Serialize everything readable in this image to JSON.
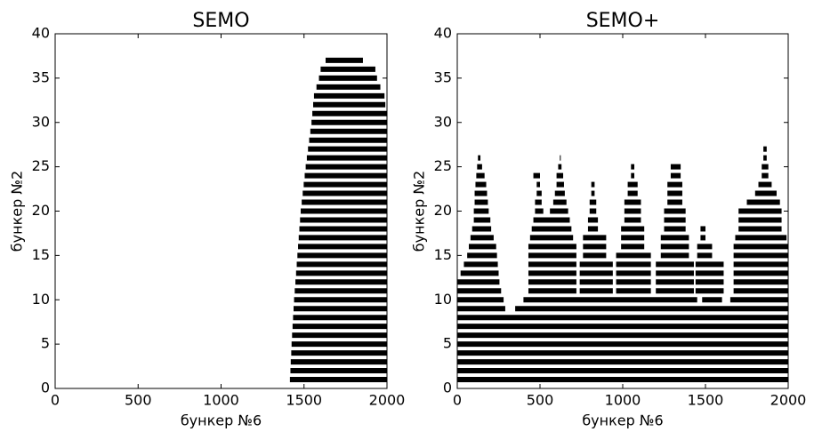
{
  "chart_data": [
    {
      "type": "range",
      "title": "SEMO",
      "xlabel": "бункер №6",
      "ylabel": "бункер №2",
      "color": "#000000",
      "xlim": [
        0,
        2000
      ],
      "ylim": [
        0,
        40
      ],
      "xticks": [
        0,
        500,
        1000,
        1500,
        2000
      ],
      "yticks": [
        0,
        5,
        10,
        15,
        20,
        25,
        30,
        35,
        40
      ],
      "segments": [
        [
          1,
          1415,
          2000
        ],
        [
          2,
          1418,
          2000
        ],
        [
          3,
          1420,
          2000
        ],
        [
          4,
          1423,
          2000
        ],
        [
          5,
          1425,
          2000
        ],
        [
          6,
          1428,
          2000
        ],
        [
          7,
          1431,
          2000
        ],
        [
          8,
          1434,
          2000
        ],
        [
          9,
          1437,
          2000
        ],
        [
          10,
          1440,
          2000
        ],
        [
          11,
          1444,
          2000
        ],
        [
          12,
          1448,
          2000
        ],
        [
          13,
          1452,
          2000
        ],
        [
          14,
          1456,
          2000
        ],
        [
          15,
          1460,
          2000
        ],
        [
          16,
          1464,
          2000
        ],
        [
          17,
          1468,
          2000
        ],
        [
          18,
          1472,
          2000
        ],
        [
          19,
          1476,
          2000
        ],
        [
          20,
          1480,
          2000
        ],
        [
          21,
          1486,
          2000
        ],
        [
          22,
          1492,
          2000
        ],
        [
          23,
          1498,
          2000
        ],
        [
          24,
          1504,
          2000
        ],
        [
          25,
          1510,
          2000
        ],
        [
          26,
          1517,
          2000
        ],
        [
          27,
          1524,
          2000
        ],
        [
          28,
          1531,
          2000
        ],
        [
          29,
          1538,
          2000
        ],
        [
          30,
          1545,
          2000
        ],
        [
          31,
          1550,
          2000
        ],
        [
          32,
          1555,
          1990
        ],
        [
          33,
          1560,
          1985
        ],
        [
          34,
          1575,
          1960
        ],
        [
          35,
          1590,
          1940
        ],
        [
          36,
          1600,
          1930
        ],
        [
          37,
          1630,
          1855
        ]
      ]
    },
    {
      "type": "range",
      "title": "SEMO+",
      "xlabel": "бункер №6",
      "ylabel": "бункер №2",
      "color": "#000000",
      "xlim": [
        0,
        2000
      ],
      "ylim": [
        0,
        40
      ],
      "xticks": [
        0,
        500,
        1000,
        1500,
        2000
      ],
      "yticks": [
        0,
        5,
        10,
        15,
        20,
        25,
        30,
        35,
        40
      ],
      "segments": [
        [
          1,
          0,
          2000
        ],
        [
          2,
          0,
          2000
        ],
        [
          3,
          0,
          2000
        ],
        [
          4,
          0,
          2000
        ],
        [
          5,
          0,
          2000
        ],
        [
          6,
          0,
          2000
        ],
        [
          7,
          0,
          2000
        ],
        [
          8,
          0,
          2000
        ],
        [
          9,
          0,
          290
        ],
        [
          9,
          350,
          2000
        ],
        [
          10,
          0,
          280
        ],
        [
          10,
          400,
          1450
        ],
        [
          10,
          1480,
          1600
        ],
        [
          10,
          1650,
          2000
        ],
        [
          11,
          0,
          265
        ],
        [
          12,
          0,
          255
        ],
        [
          13,
          20,
          250
        ],
        [
          14,
          40,
          245
        ],
        [
          15,
          60,
          240
        ],
        [
          16,
          70,
          235
        ],
        [
          17,
          80,
          220
        ],
        [
          18,
          90,
          205
        ],
        [
          19,
          100,
          200
        ],
        [
          20,
          100,
          190
        ],
        [
          21,
          105,
          185
        ],
        [
          22,
          105,
          180
        ],
        [
          23,
          110,
          175
        ],
        [
          24,
          115,
          165
        ],
        [
          25,
          120,
          150
        ],
        [
          26,
          125,
          140
        ],
        [
          11,
          430,
          720
        ],
        [
          12,
          430,
          720
        ],
        [
          13,
          430,
          720
        ],
        [
          14,
          430,
          720
        ],
        [
          15,
          430,
          720
        ],
        [
          16,
          430,
          720
        ],
        [
          17,
          440,
          700
        ],
        [
          18,
          450,
          690
        ],
        [
          19,
          460,
          680
        ],
        [
          20,
          470,
          520
        ],
        [
          20,
          560,
          670
        ],
        [
          21,
          470,
          510
        ],
        [
          21,
          580,
          660
        ],
        [
          22,
          480,
          510
        ],
        [
          22,
          590,
          650
        ],
        [
          23,
          480,
          500
        ],
        [
          23,
          600,
          645
        ],
        [
          24,
          460,
          500
        ],
        [
          24,
          600,
          640
        ],
        [
          25,
          610,
          630
        ],
        [
          26,
          620,
          625
        ],
        [
          11,
          740,
          940
        ],
        [
          12,
          740,
          940
        ],
        [
          13,
          740,
          940
        ],
        [
          14,
          740,
          940
        ],
        [
          15,
          760,
          900
        ],
        [
          16,
          760,
          900
        ],
        [
          17,
          760,
          900
        ],
        [
          18,
          790,
          850
        ],
        [
          19,
          790,
          850
        ],
        [
          20,
          800,
          840
        ],
        [
          21,
          800,
          840
        ],
        [
          22,
          810,
          830
        ],
        [
          23,
          810,
          830
        ],
        [
          11,
          960,
          1170
        ],
        [
          12,
          960,
          1170
        ],
        [
          13,
          960,
          1170
        ],
        [
          14,
          960,
          1170
        ],
        [
          15,
          960,
          1170
        ],
        [
          16,
          990,
          1130
        ],
        [
          17,
          990,
          1130
        ],
        [
          18,
          990,
          1130
        ],
        [
          19,
          1010,
          1110
        ],
        [
          20,
          1010,
          1110
        ],
        [
          21,
          1010,
          1110
        ],
        [
          22,
          1030,
          1090
        ],
        [
          23,
          1030,
          1090
        ],
        [
          24,
          1050,
          1070
        ],
        [
          25,
          1050,
          1070
        ],
        [
          11,
          1200,
          1430
        ],
        [
          12,
          1200,
          1430
        ],
        [
          13,
          1200,
          1430
        ],
        [
          14,
          1200,
          1430
        ],
        [
          15,
          1230,
          1400
        ],
        [
          16,
          1230,
          1400
        ],
        [
          17,
          1230,
          1400
        ],
        [
          18,
          1250,
          1380
        ],
        [
          19,
          1250,
          1380
        ],
        [
          20,
          1250,
          1380
        ],
        [
          21,
          1270,
          1360
        ],
        [
          22,
          1270,
          1360
        ],
        [
          23,
          1270,
          1360
        ],
        [
          24,
          1290,
          1350
        ],
        [
          25,
          1290,
          1350
        ],
        [
          11,
          1440,
          1610
        ],
        [
          12,
          1440,
          1610
        ],
        [
          13,
          1440,
          1610
        ],
        [
          14,
          1440,
          1610
        ],
        [
          15,
          1450,
          1540
        ],
        [
          16,
          1450,
          1540
        ],
        [
          17,
          1470,
          1500
        ],
        [
          18,
          1470,
          1500
        ],
        [
          11,
          1670,
          2000
        ],
        [
          12,
          1670,
          2000
        ],
        [
          13,
          1670,
          2000
        ],
        [
          14,
          1670,
          2000
        ],
        [
          15,
          1670,
          2000
        ],
        [
          16,
          1670,
          2000
        ],
        [
          17,
          1680,
          1990
        ],
        [
          18,
          1700,
          1960
        ],
        [
          19,
          1700,
          1960
        ],
        [
          20,
          1700,
          1960
        ],
        [
          21,
          1750,
          1950
        ],
        [
          22,
          1800,
          1930
        ],
        [
          23,
          1820,
          1900
        ],
        [
          24,
          1840,
          1880
        ],
        [
          25,
          1840,
          1880
        ],
        [
          26,
          1850,
          1870
        ],
        [
          27,
          1850,
          1870
        ]
      ]
    }
  ]
}
